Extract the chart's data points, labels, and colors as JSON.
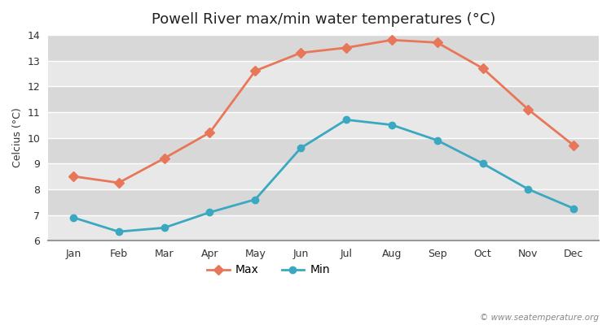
{
  "months": [
    "Jan",
    "Feb",
    "Mar",
    "Apr",
    "May",
    "Jun",
    "Jul",
    "Aug",
    "Sep",
    "Oct",
    "Nov",
    "Dec"
  ],
  "max_temps": [
    8.5,
    8.25,
    9.2,
    10.2,
    12.6,
    13.3,
    13.5,
    13.8,
    13.7,
    12.7,
    11.1,
    9.7
  ],
  "min_temps": [
    6.9,
    6.35,
    6.5,
    7.1,
    7.6,
    9.6,
    10.7,
    10.5,
    9.9,
    9.0,
    8.0,
    7.25
  ],
  "max_color": "#e8775a",
  "min_color": "#3aa8c1",
  "title": "Powell River max/min water temperatures (°C)",
  "ylabel": "Celcius (°C)",
  "ylim": [
    6,
    14
  ],
  "yticks": [
    6,
    7,
    8,
    9,
    10,
    11,
    12,
    13,
    14
  ],
  "bg_color": "#ffffff",
  "plot_bg_color": "#f0f0f0",
  "band_color_light": "#e8e8e8",
  "band_color_dark": "#d8d8d8",
  "grid_color": "#ffffff",
  "watermark": "© www.seatemperature.org"
}
